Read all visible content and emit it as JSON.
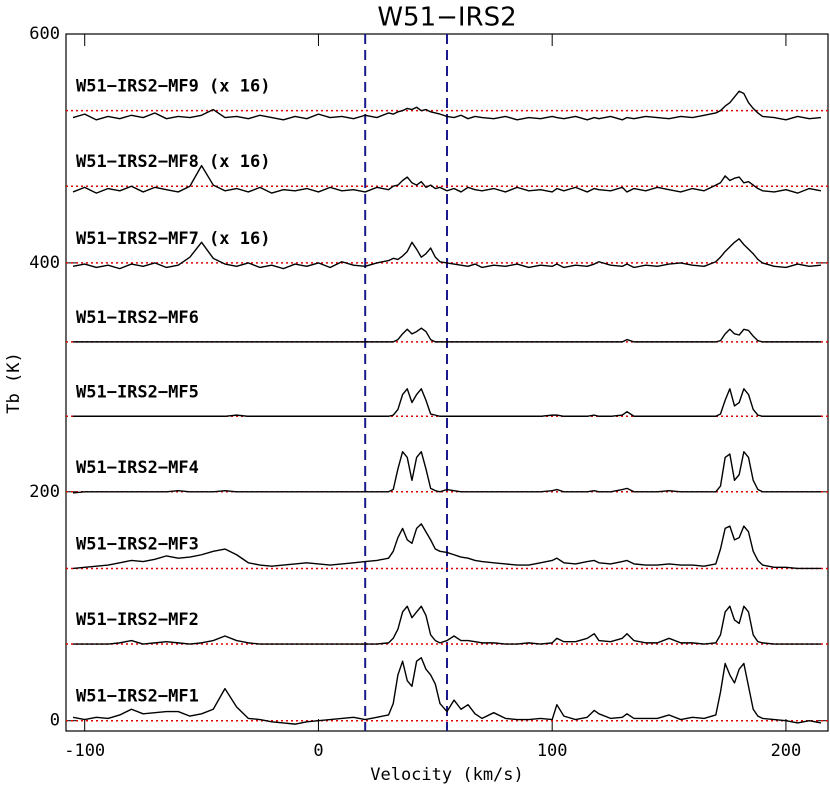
{
  "chart_data": {
    "type": "line",
    "title": "W51−IRS2",
    "x_label": "Velocity (km/s)",
    "y_label": "Tb (K)",
    "xlim": [
      -108,
      218
    ],
    "ylim": [
      -9,
      600
    ],
    "xticks": [
      -100,
      0,
      100,
      200
    ],
    "yticks": [
      0,
      200,
      400,
      600
    ],
    "label_color": "#1a1a8c",
    "reference_color": "#e00000",
    "reference_levels": [
      0,
      67,
      133,
      200,
      266,
      331,
      400,
      467,
      533
    ],
    "vlines": [
      20,
      55
    ],
    "vline_color": "#1a1a8c",
    "x": [
      -105,
      -100,
      -95,
      -90,
      -85,
      -80,
      -75,
      -70,
      -65,
      -60,
      -55,
      -50,
      -45,
      -40,
      -35,
      -30,
      -25,
      -20,
      -15,
      -10,
      -5,
      0,
      5,
      10,
      15,
      20,
      25,
      30,
      32,
      34,
      36,
      38,
      40,
      42,
      44,
      46,
      48,
      50,
      52,
      55,
      58,
      61,
      64,
      67,
      70,
      75,
      80,
      85,
      90,
      95,
      100,
      102,
      105,
      110,
      115,
      118,
      120,
      125,
      130,
      132,
      135,
      140,
      145,
      150,
      155,
      160,
      165,
      170,
      172,
      174,
      176,
      178,
      180,
      182,
      184,
      186,
      188,
      190,
      195,
      200,
      205,
      210,
      215
    ],
    "series": [
      {
        "name": "W51−IRS2−MF1",
        "color": "#000000",
        "values": [
          3,
          1,
          3,
          2,
          5,
          10,
          6,
          7,
          8,
          8,
          4,
          6,
          10,
          28,
          12,
          2,
          1,
          -1,
          -2,
          -3,
          -1,
          0,
          1,
          2,
          3,
          1,
          3,
          5,
          15,
          40,
          52,
          35,
          30,
          52,
          55,
          45,
          40,
          32,
          15,
          8,
          18,
          10,
          14,
          6,
          2,
          7,
          2,
          1,
          1,
          2,
          1,
          14,
          4,
          1,
          3,
          9,
          6,
          2,
          3,
          6,
          2,
          2,
          2,
          5,
          1,
          3,
          2,
          5,
          25,
          50,
          40,
          33,
          45,
          50,
          30,
          10,
          4,
          2,
          1,
          0,
          -2,
          0,
          -2
        ]
      },
      {
        "name": "W51−IRS2−MF2",
        "color": "#000000",
        "values": [
          67,
          67,
          67,
          67,
          68,
          70,
          67,
          68,
          69,
          68,
          67,
          68,
          70,
          74,
          70,
          68,
          67,
          67,
          67,
          67,
          67,
          67,
          67,
          67,
          67,
          67,
          67,
          68,
          72,
          80,
          95,
          100,
          90,
          95,
          100,
          92,
          75,
          70,
          68,
          70,
          74,
          70,
          70,
          69,
          68,
          68,
          67,
          67,
          68,
          67,
          68,
          72,
          69,
          69,
          72,
          76,
          70,
          69,
          72,
          76,
          70,
          68,
          68,
          72,
          68,
          68,
          67,
          68,
          75,
          95,
          100,
          88,
          85,
          100,
          95,
          75,
          69,
          68,
          67,
          67,
          67,
          67,
          67
        ]
      },
      {
        "name": "W51−IRS2−MF3",
        "color": "#000000",
        "values": [
          133,
          134,
          135,
          136,
          138,
          140,
          139,
          141,
          144,
          142,
          143,
          145,
          148,
          150,
          145,
          138,
          136,
          135,
          136,
          137,
          138,
          137,
          136,
          137,
          138,
          139,
          140,
          142,
          148,
          160,
          168,
          158,
          155,
          168,
          172,
          165,
          158,
          150,
          148,
          147,
          145,
          143,
          142,
          140,
          139,
          138,
          137,
          136,
          136,
          138,
          140,
          142,
          138,
          137,
          139,
          140,
          138,
          137,
          139,
          140,
          137,
          136,
          136,
          137,
          136,
          136,
          135,
          137,
          150,
          168,
          170,
          158,
          160,
          170,
          165,
          148,
          140,
          136,
          134,
          134,
          133,
          133,
          133
        ]
      },
      {
        "name": "W51−IRS2−MF4",
        "color": "#000000",
        "values": [
          199,
          200,
          200,
          200,
          200,
          200,
          200,
          200,
          200,
          201,
          200,
          200,
          200,
          201,
          200,
          200,
          200,
          200,
          200,
          200,
          200,
          200,
          200,
          200,
          200,
          200,
          200,
          200,
          202,
          220,
          235,
          230,
          210,
          230,
          235,
          220,
          203,
          201,
          200,
          202,
          201,
          200,
          200,
          200,
          200,
          200,
          200,
          200,
          200,
          200,
          201,
          202,
          200,
          200,
          200,
          201,
          200,
          200,
          202,
          203,
          200,
          200,
          200,
          201,
          200,
          200,
          200,
          200,
          205,
          230,
          233,
          210,
          215,
          235,
          230,
          210,
          202,
          200,
          200,
          200,
          200,
          200,
          200
        ]
      },
      {
        "name": "W51−IRS2−MF5",
        "color": "#000000",
        "values": [
          266,
          266,
          266,
          266,
          266,
          266,
          266,
          266,
          266,
          266,
          266,
          266,
          266,
          266,
          267,
          266,
          266,
          266,
          266,
          266,
          266,
          266,
          266,
          266,
          266,
          266,
          266,
          266,
          267,
          272,
          285,
          290,
          278,
          285,
          290,
          280,
          268,
          267,
          266,
          266,
          266,
          266,
          266,
          266,
          266,
          266,
          266,
          266,
          266,
          266,
          267,
          267,
          266,
          266,
          266,
          267,
          266,
          266,
          267,
          270,
          266,
          266,
          266,
          266,
          266,
          266,
          266,
          266,
          268,
          280,
          290,
          275,
          278,
          290,
          285,
          272,
          267,
          266,
          266,
          266,
          266,
          266,
          266
        ]
      },
      {
        "name": "W51−IRS2−MF6",
        "color": "#000000",
        "values": [
          331,
          331,
          331,
          331,
          331,
          331,
          331,
          331,
          331,
          331,
          331,
          331,
          331,
          331,
          331,
          331,
          331,
          331,
          331,
          331,
          331,
          331,
          331,
          331,
          331,
          331,
          331,
          331,
          331,
          333,
          338,
          342,
          338,
          340,
          343,
          340,
          333,
          331,
          331,
          331,
          331,
          331,
          331,
          331,
          331,
          331,
          331,
          331,
          331,
          331,
          331,
          331,
          331,
          331,
          331,
          331,
          331,
          331,
          331,
          333,
          331,
          331,
          331,
          331,
          331,
          331,
          331,
          331,
          332,
          338,
          342,
          338,
          337,
          342,
          341,
          336,
          332,
          331,
          331,
          331,
          331,
          331,
          331
        ]
      },
      {
        "name": "W51−IRS2−MF7 (x 16)",
        "color": "#000000",
        "values": [
          397,
          399,
          396,
          398,
          395,
          399,
          397,
          400,
          396,
          398,
          405,
          418,
          404,
          399,
          397,
          400,
          396,
          398,
          395,
          399,
          397,
          400,
          396,
          401,
          398,
          397,
          400,
          402,
          404,
          403,
          406,
          410,
          418,
          412,
          405,
          408,
          413,
          405,
          401,
          400,
          399,
          398,
          397,
          399,
          396,
          398,
          397,
          399,
          396,
          398,
          397,
          399,
          396,
          398,
          397,
          399,
          401,
          398,
          397,
          399,
          396,
          398,
          397,
          399,
          400,
          398,
          397,
          401,
          405,
          410,
          414,
          418,
          421,
          416,
          412,
          408,
          403,
          400,
          397,
          396,
          399,
          397,
          398
        ]
      },
      {
        "name": "W51−IRS2−MF8 (x 16)",
        "color": "#000000",
        "values": [
          462,
          466,
          461,
          465,
          463,
          467,
          462,
          466,
          464,
          462,
          467,
          485,
          468,
          463,
          465,
          462,
          466,
          461,
          464,
          463,
          465,
          462,
          466,
          463,
          464,
          462,
          466,
          464,
          467,
          468,
          472,
          475,
          470,
          468,
          471,
          466,
          468,
          465,
          466,
          463,
          465,
          462,
          466,
          464,
          463,
          465,
          462,
          466,
          463,
          464,
          462,
          465,
          463,
          466,
          462,
          465,
          464,
          463,
          466,
          462,
          465,
          463,
          466,
          464,
          462,
          465,
          463,
          468,
          470,
          476,
          472,
          474,
          475,
          470,
          471,
          468,
          465,
          463,
          462,
          464,
          461,
          465,
          463
        ]
      },
      {
        "name": "W51−IRS2−MF9 (x 16)",
        "color": "#000000",
        "values": [
          527,
          530,
          525,
          528,
          526,
          529,
          527,
          531,
          526,
          528,
          527,
          529,
          534,
          527,
          528,
          526,
          529,
          527,
          525,
          528,
          526,
          530,
          527,
          528,
          526,
          529,
          527,
          531,
          530,
          532,
          533,
          535,
          534,
          536,
          533,
          534,
          532,
          531,
          530,
          528,
          527,
          529,
          526,
          528,
          527,
          526,
          528,
          525,
          527,
          526,
          528,
          527,
          526,
          528,
          525,
          527,
          526,
          528,
          525,
          527,
          526,
          528,
          527,
          526,
          528,
          527,
          529,
          531,
          533,
          537,
          540,
          545,
          550,
          548,
          540,
          535,
          531,
          528,
          527,
          525,
          528,
          526,
          527
        ]
      }
    ]
  }
}
